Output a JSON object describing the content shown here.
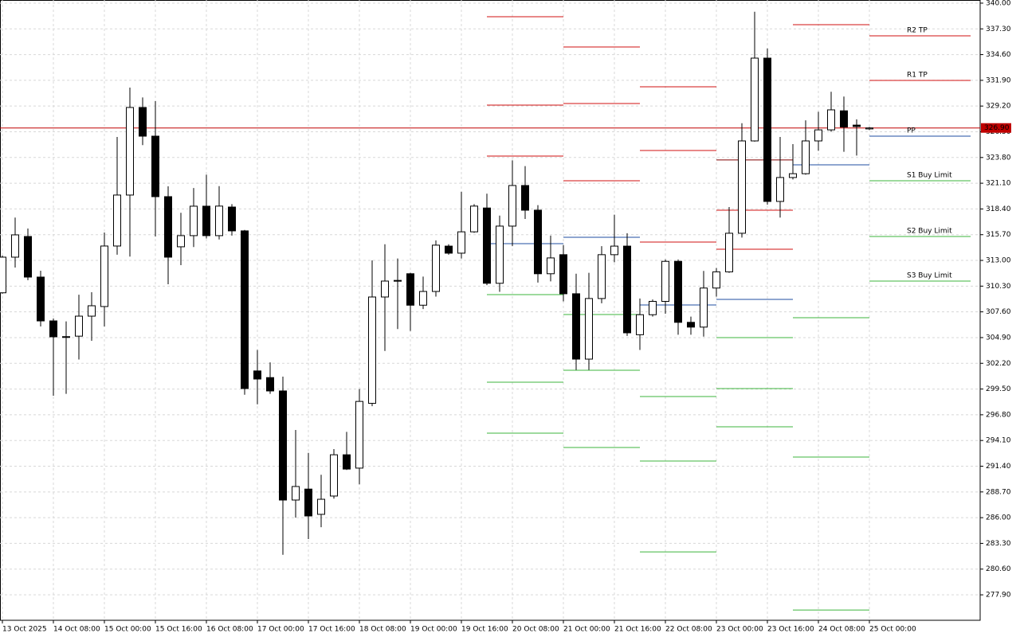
{
  "chart_data": {
    "type": "candlestick",
    "categories": [
      "13 Oct 2025",
      null,
      null,
      null,
      "14 Oct 08:00",
      null,
      null,
      null,
      "15 Oct 00:00",
      null,
      null,
      null,
      "15 Oct 16:00",
      null,
      null,
      null,
      "16 Oct 08:00",
      null,
      null,
      null,
      "17 Oct 00:00",
      null,
      null,
      null,
      "17 Oct 16:00",
      null,
      null,
      null,
      "18 Oct 08:00",
      null,
      null,
      null,
      "19 Oct 00:00",
      null,
      null,
      null,
      "19 Oct 16:00",
      null,
      null,
      null,
      "20 Oct 08:00",
      null,
      null,
      null,
      "21 Oct 00:00",
      null,
      null,
      null,
      "21 Oct 16:00",
      null,
      null,
      null,
      "22 Oct 08:00",
      null,
      null,
      null,
      "23 Oct 00:00",
      null,
      null,
      null,
      "23 Oct 16:00",
      null,
      null,
      null,
      "24 Oct 08:00",
      null,
      null,
      null,
      "25 Oct 00:00"
    ],
    "open": [
      309.6,
      313.34,
      315.51,
      311.25,
      306.65,
      305.0,
      305.05,
      307.15,
      308.16,
      314.51,
      319.86,
      329.05,
      326.04,
      319.69,
      314.43,
      315.6,
      318.69,
      315.6,
      318.6,
      316.1,
      301.4,
      300.7,
      299.3,
      287.85,
      289.0,
      286.35,
      288.27,
      292.6,
      291.2,
      298.0,
      309.16,
      310.83,
      311.6,
      308.3,
      309.74,
      314.5,
      313.76,
      316.0,
      318.5,
      310.6,
      316.6,
      320.86,
      318.27,
      311.6,
      313.6,
      309.5,
      302.64,
      309.0,
      313.6,
      314.5,
      305.2,
      307.3,
      308.7,
      312.9,
      306.5,
      306.0,
      310.1,
      311.8,
      315.85,
      325.54,
      334.23,
      319.19,
      321.7,
      322.1,
      325.54,
      326.7,
      328.7,
      327.2,
      326.8
    ],
    "high": [
      313.5,
      317.5,
      316.35,
      311.92,
      306.9,
      306.6,
      309.4,
      309.66,
      315.93,
      325.96,
      331.14,
      330.1,
      329.72,
      320.78,
      318.0,
      320.6,
      322.0,
      320.8,
      318.9,
      316.2,
      303.6,
      302.3,
      300.8,
      295.2,
      292.8,
      290.5,
      293.2,
      295.0,
      299.5,
      313.0,
      314.7,
      313.2,
      311.7,
      311.3,
      315.1,
      314.7,
      320.2,
      318.9,
      320.0,
      317.7,
      323.5,
      322.9,
      318.8,
      315.6,
      314.6,
      311.6,
      311.7,
      314.5,
      317.8,
      315.85,
      309.0,
      308.9,
      313.1,
      313.1,
      307.1,
      311.9,
      312.2,
      318.6,
      327.4,
      339.1,
      335.24,
      325.96,
      325.2,
      327.7,
      328.6,
      330.7,
      330.2,
      327.8,
      327.0
    ],
    "low": [
      309.5,
      312.25,
      310.92,
      306.07,
      298.8,
      299.0,
      302.6,
      304.56,
      306.07,
      313.6,
      313.4,
      325.1,
      315.51,
      310.5,
      312.5,
      314.4,
      315.3,
      315.2,
      315.6,
      298.9,
      297.9,
      299.0,
      282.1,
      286.0,
      283.75,
      285.0,
      288.0,
      291.0,
      289.5,
      297.7,
      303.5,
      305.8,
      305.6,
      307.9,
      309.2,
      313.6,
      313.2,
      315.9,
      310.4,
      309.7,
      314.5,
      317.35,
      310.67,
      310.8,
      308.7,
      301.5,
      301.5,
      308.5,
      312.8,
      305.07,
      303.6,
      307.1,
      307.4,
      305.2,
      305.2,
      305.0,
      309.2,
      311.7,
      315.4,
      325.46,
      318.85,
      317.5,
      321.5,
      322.0,
      324.5,
      326.5,
      324.4,
      324.0,
      326.7
    ],
    "close": [
      313.34,
      315.68,
      311.25,
      306.65,
      304.98,
      305.0,
      307.15,
      308.24,
      314.51,
      319.86,
      329.05,
      326.04,
      319.69,
      313.34,
      315.6,
      318.69,
      315.6,
      318.7,
      316.1,
      299.55,
      300.55,
      299.3,
      287.85,
      289.27,
      286.18,
      287.93,
      292.6,
      291.1,
      298.2,
      309.16,
      310.83,
      310.9,
      308.3,
      309.74,
      314.6,
      313.76,
      316.0,
      318.7,
      310.6,
      316.6,
      320.86,
      318.27,
      311.6,
      313.26,
      309.5,
      302.64,
      309.0,
      313.6,
      314.5,
      305.4,
      307.3,
      308.7,
      312.9,
      306.5,
      306.0,
      310.1,
      311.8,
      315.85,
      325.54,
      334.23,
      319.19,
      321.7,
      322.1,
      325.54,
      326.7,
      328.8,
      327.0,
      327.05,
      326.9
    ],
    "pivots": [
      [
        {
          "value": 338.58,
          "color": "#d01010"
        },
        {
          "value": 329.3,
          "color": "#d01010"
        },
        {
          "value": 323.95,
          "color": "#d01010"
        },
        {
          "value": 314.76,
          "color": "#1f4ea0"
        },
        {
          "value": 309.41,
          "color": "#3cb43c"
        },
        {
          "value": 300.22,
          "color": "#3cb43c"
        },
        {
          "value": 294.87,
          "color": "#3cb43c"
        }
      ],
      [
        {
          "value": 335.4,
          "color": "#d01010"
        },
        {
          "value": 329.47,
          "color": "#d01010"
        },
        {
          "value": 321.36,
          "color": "#d01010"
        },
        {
          "value": 315.43,
          "color": "#1f4ea0"
        },
        {
          "value": 307.32,
          "color": "#3cb43c"
        },
        {
          "value": 301.47,
          "color": "#3cb43c"
        },
        {
          "value": 293.36,
          "color": "#3cb43c"
        }
      ],
      [
        {
          "value": 331.22,
          "color": "#d01010"
        },
        {
          "value": 324.54,
          "color": "#d01010"
        },
        {
          "value": 314.93,
          "color": "#d01010"
        },
        {
          "value": 308.32,
          "color": "#1f4ea0"
        },
        {
          "value": 298.71,
          "color": "#3cb43c"
        },
        {
          "value": 291.94,
          "color": "#3cb43c"
        },
        {
          "value": 282.41,
          "color": "#3cb43c"
        }
      ],
      [
        {
          "value": 323.54,
          "color": "#800000"
        },
        {
          "value": 318.27,
          "color": "#d01010"
        },
        {
          "value": 314.17,
          "color": "#d01010"
        },
        {
          "value": 308.91,
          "color": "#1f4ea0"
        },
        {
          "value": 304.9,
          "color": "#3cb43c"
        },
        {
          "value": 299.55,
          "color": "#3cb43c"
        },
        {
          "value": 295.54,
          "color": "#3cb43c"
        }
      ],
      [
        {
          "value": 337.74,
          "color": "#d01010"
        },
        {
          "value": 323.03,
          "color": "#1f4ea0"
        },
        {
          "value": 306.99,
          "color": "#3cb43c"
        },
        {
          "value": 292.36,
          "color": "#3cb43c"
        },
        {
          "value": 276.31,
          "color": "#3cb43c"
        }
      ],
      [
        {
          "value": 336.57,
          "color": "#d01010",
          "label": "R2 TP"
        },
        {
          "value": 331.89,
          "color": "#d01010",
          "label": "R1 TP"
        },
        {
          "value": 326.04,
          "color": "#1f4ea0",
          "label": "PP"
        },
        {
          "value": 321.36,
          "color": "#3cb43c",
          "label": "S1 Buy Limit"
        },
        {
          "value": 315.51,
          "color": "#3cb43c",
          "label": "S2 Buy Limit"
        },
        {
          "value": 310.83,
          "color": "#3cb43c",
          "label": "S3 Buy Limit"
        }
      ]
    ],
    "current_price": {
      "value": 326.9,
      "label": "326.90",
      "color": "#c00000"
    },
    "ylim": [
      275.23,
      340.33
    ],
    "yticks": [
      {
        "value": 340,
        "label": "340.00"
      },
      {
        "value": 337.3,
        "label": "337.30"
      },
      {
        "value": 334.6,
        "label": "334.60"
      },
      {
        "value": 331.9,
        "label": "331.90"
      },
      {
        "value": 329.2,
        "label": "329.20"
      },
      {
        "value": 326.5,
        "label": "326.50"
      },
      {
        "value": 323.8,
        "label": "323.80"
      },
      {
        "value": 321.1,
        "label": "321.10"
      },
      {
        "value": 318.4,
        "label": "318.40"
      },
      {
        "value": 315.7,
        "label": "315.70"
      },
      {
        "value": 313,
        "label": "313.00"
      },
      {
        "value": 310.3,
        "label": "310.30"
      },
      {
        "value": 307.6,
        "label": "307.60"
      },
      {
        "value": 304.9,
        "label": "304.90"
      },
      {
        "value": 302.2,
        "label": "302.20"
      },
      {
        "value": 299.5,
        "label": "299.50"
      },
      {
        "value": 296.8,
        "label": "296.80"
      },
      {
        "value": 294.1,
        "label": "294.10"
      },
      {
        "value": 291.4,
        "label": "291.40"
      },
      {
        "value": 288.7,
        "label": "288.70"
      },
      {
        "value": 286,
        "label": "286.00"
      },
      {
        "value": 283.3,
        "label": "283.30"
      },
      {
        "value": 280.6,
        "label": "280.60"
      },
      {
        "value": 277.9,
        "label": "277.90"
      }
    ],
    "grid": true
  }
}
